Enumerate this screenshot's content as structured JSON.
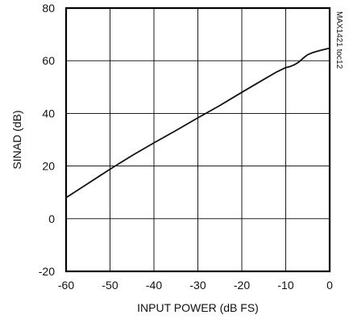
{
  "chart_data": {
    "type": "line",
    "xlabel": "INPUT POWER (dB FS)",
    "ylabel": "SINAD (dB)",
    "side_label": "MAX1421 toc12",
    "xlim": [
      -60,
      0
    ],
    "ylim": [
      -20,
      80
    ],
    "x_ticks": [
      "-60",
      "-50",
      "-40",
      "-30",
      "-20",
      "-10",
      "0"
    ],
    "y_ticks": [
      "80",
      "60",
      "40",
      "20",
      "0",
      "-20"
    ],
    "grid": true,
    "line_color": "#111111",
    "series": [
      {
        "x": [
          -60,
          -55,
          -50,
          -45,
          -40,
          -35,
          -30,
          -25,
          -20,
          -15,
          -12,
          -10,
          -9,
          -8,
          -7,
          -6,
          -5,
          -4,
          -3,
          -2,
          -1,
          0
        ],
        "values": [
          8,
          13.4,
          18.8,
          24,
          28.8,
          33.5,
          38.3,
          43,
          48,
          52.9,
          55.8,
          57.4,
          57.8,
          58.5,
          59.5,
          61,
          62.3,
          63,
          63.5,
          64,
          64.4,
          64.8
        ]
      }
    ]
  }
}
